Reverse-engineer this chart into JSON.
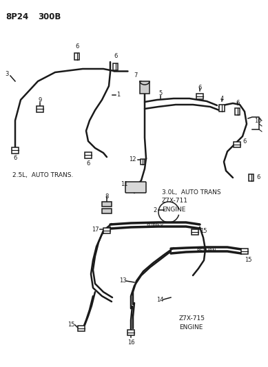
{
  "header_text": "8P24  300B",
  "background_color": "#ffffff",
  "line_color": "#1a1a1a",
  "fig_width": 3.89,
  "fig_height": 5.33,
  "dpi": 100,
  "label_section1": "2.5L,  AUTO TRANS.",
  "label_section2": "3.0L,  AUTO TRANS\nZ7X-711\nENGINE",
  "label_section3": "Z7X-715\nENGINE"
}
